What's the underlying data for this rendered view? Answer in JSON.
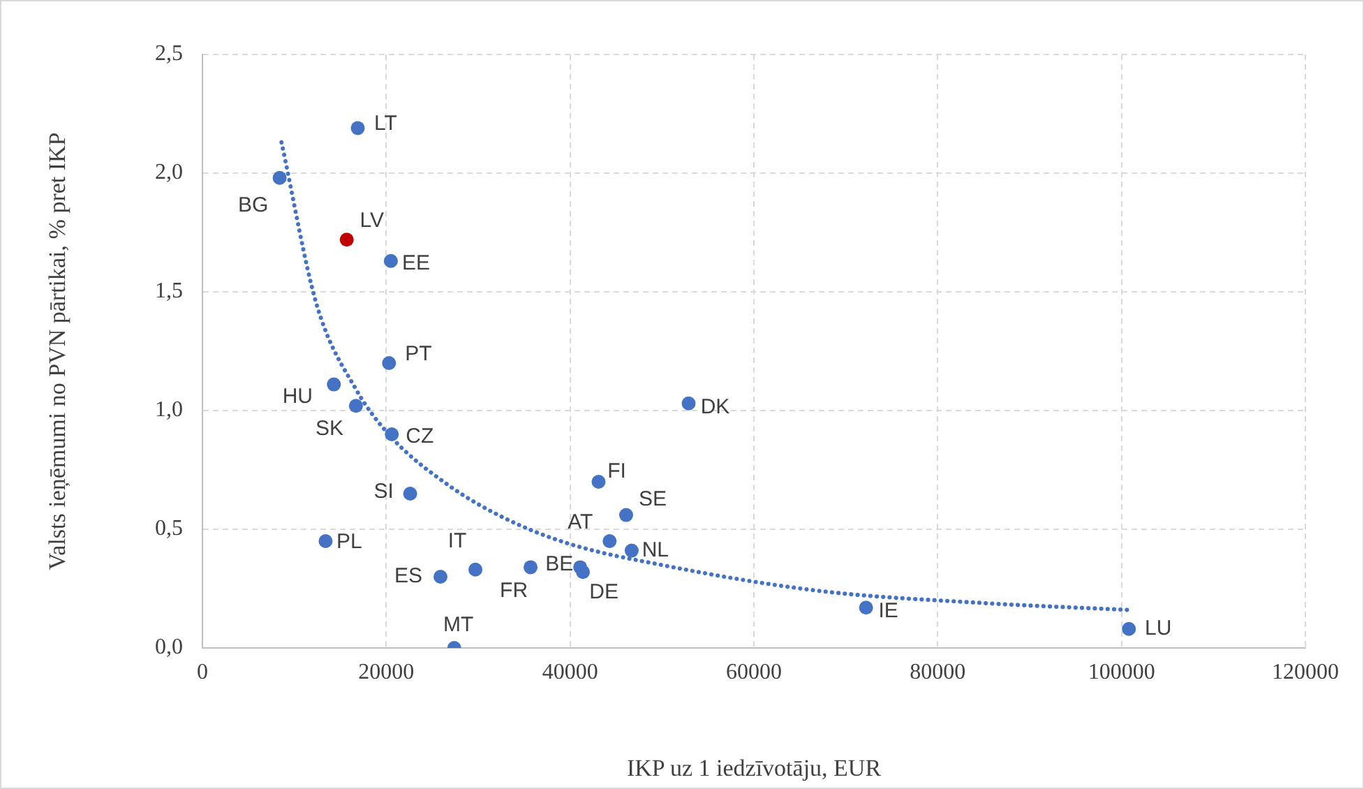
{
  "chart_data": {
    "type": "scatter",
    "xlabel": "IKP uz 1 iedzīvotāju, EUR",
    "ylabel": "Valsts ieņēmumi no PVN pārtikai, % pret IKP",
    "xlim": [
      0,
      120000
    ],
    "xticks": [
      0,
      20000,
      40000,
      60000,
      80000,
      100000,
      120000
    ],
    "ylim": [
      0,
      2.5
    ],
    "yticks": [
      {
        "value": 0,
        "label": "0,0"
      },
      {
        "value": 0.5,
        "label": "0,5"
      },
      {
        "value": 1,
        "label": "1,0"
      },
      {
        "value": 1.5,
        "label": "1,5"
      },
      {
        "value": 2,
        "label": "2,0"
      },
      {
        "value": 2.5,
        "label": "2,5"
      }
    ],
    "grid": true,
    "legend": false,
    "series": [
      {
        "marker": "circle",
        "color": "#4472c4",
        "x": [
          8400,
          16900,
          15700,
          20500,
          20300,
          14300,
          16700,
          20600,
          22600,
          13400,
          25900,
          29700,
          27400,
          35700,
          41100,
          41400,
          43100,
          44300,
          46100,
          46700,
          52900,
          72200,
          100800
        ],
        "values": [
          1.98,
          2.19,
          1.72,
          1.63,
          1.2,
          1.11,
          1.02,
          0.9,
          0.65,
          0.45,
          0.3,
          0.33,
          0,
          0.34,
          0.34,
          0.32,
          0.7,
          0.45,
          0.56,
          0.41,
          1.03,
          0.17,
          0.08
        ],
        "colors": [
          "#4472c4",
          "#4472c4",
          "#c00000",
          "#4472c4",
          "#4472c4",
          "#4472c4",
          "#4472c4",
          "#4472c4",
          "#4472c4",
          "#4472c4",
          "#4472c4",
          "#4472c4",
          "#4472c4",
          "#4472c4",
          "#4472c4",
          "#4472c4",
          "#4472c4",
          "#4472c4",
          "#4472c4",
          "#4472c4",
          "#4472c4",
          "#4472c4",
          "#4472c4"
        ],
        "value_labels": [
          "BG",
          "LT",
          "LV",
          "EE",
          "PT",
          "HU",
          "SK",
          "CZ",
          "SI",
          "PL",
          "ES",
          "IT",
          "MT",
          "FR",
          "BE",
          "DE",
          "FI",
          "AT",
          "SE",
          "NL",
          "DK",
          "IE",
          "LU"
        ]
      },
      {
        "type": "line",
        "marker": "none",
        "line_style": "dotted",
        "color": "#4472c4",
        "x": [
          8600,
          12400,
          16700,
          20500,
          26600,
          32700,
          39800,
          49900,
          67200,
          84600,
          100900
        ],
        "values": [
          2.13,
          1.45,
          1.09,
          0.89,
          0.69,
          0.55,
          0.44,
          0.35,
          0.24,
          0.19,
          0.16
        ]
      }
    ]
  }
}
